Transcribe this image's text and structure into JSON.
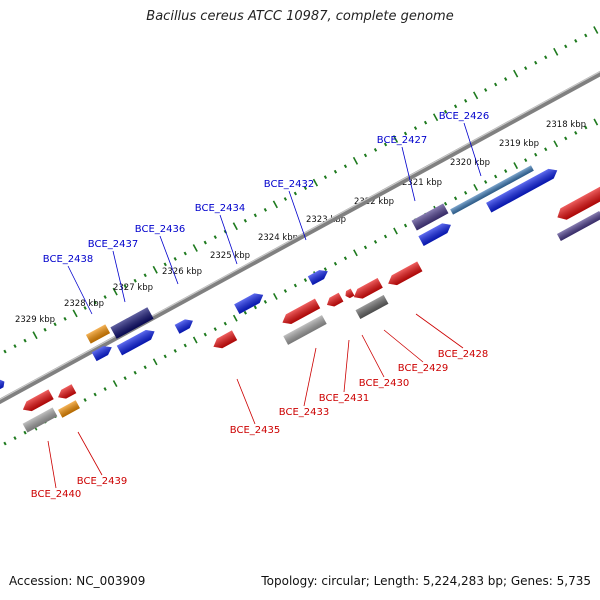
{
  "title": "Bacillus cereus ATCC 10987, complete genome",
  "accession": "Accession: NC_003909",
  "summary": "Topology: circular; Length: 5,224,283 bp; Genes: 5,735",
  "colors": {
    "forward_label": "#0000cc",
    "reverse_label": "#cc0000",
    "backbone": "#808080",
    "tick": "#1e7a1e",
    "gene_blue": "#0a1ee6",
    "gene_red": "#e60a0a",
    "gene_navy": "#0c0c6e",
    "gene_purple": "#4a3a8a",
    "gene_steel": "#3a78b4",
    "gene_orange": "#f08c00",
    "gene_gray": "#a0a0a0",
    "gene_darkgray": "#666666"
  },
  "scale_labels": [
    "2318 kbp",
    "2319 kbp",
    "2320 kbp",
    "2321 kbp",
    "2322 kbp",
    "2323 kbp",
    "2324 kbp",
    "2325 kbp",
    "2326 kbp",
    "2327 kbp",
    "2328 kbp",
    "2329 kbp"
  ],
  "forward_genes": [
    "BCE_2426",
    "BCE_2427",
    "BCE_2432",
    "BCE_2434",
    "BCE_2436",
    "BCE_2437",
    "BCE_2438"
  ],
  "reverse_genes": [
    "BCE_2428",
    "BCE_2429",
    "BCE_2430",
    "BCE_2431",
    "BCE_2433",
    "BCE_2435",
    "BCE_2439",
    "BCE_2440"
  ]
}
